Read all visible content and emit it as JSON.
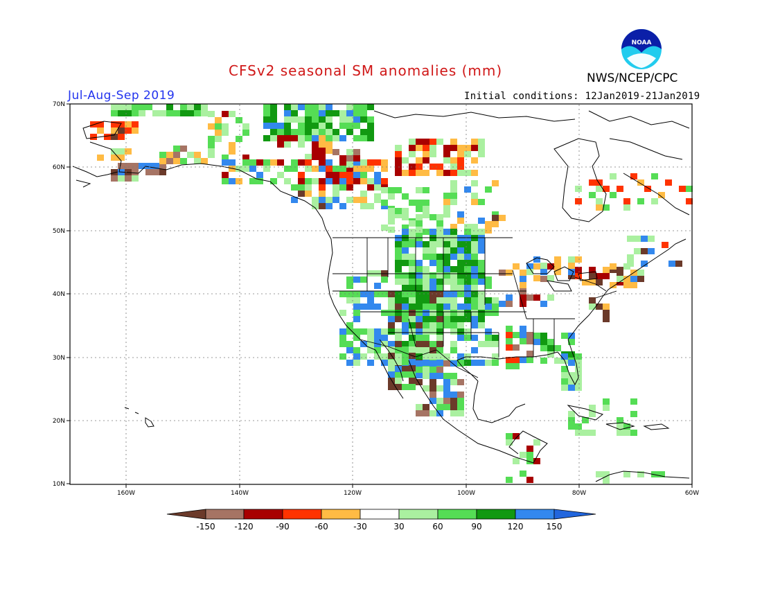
{
  "title": "CFSv2 seasonal SM anomalies (mm)",
  "period": "Jul-Aug-Sep 2019",
  "initial_conditions": "Initial conditions: 12Jan2019-21Jan2019",
  "agency": "NWS/NCEP/CPC",
  "logo_text": "NOAA",
  "map": {
    "lon_range": [
      -170,
      -60
    ],
    "lat_range": [
      10,
      70
    ],
    "lat_labels": [
      "70N",
      "60N",
      "50N",
      "40N",
      "30N",
      "20N",
      "10N"
    ],
    "lon_labels": [
      "160W",
      "140W",
      "120W",
      "100W",
      "80W",
      "60W"
    ],
    "gridlines": "dotted"
  },
  "colorbar": {
    "colors": [
      "#6b3a2a",
      "#a67464",
      "#a80000",
      "#ff3300",
      "#ffbb44",
      "#ffffff",
      "#aaf0a0",
      "#55dd55",
      "#119911",
      "#3388ee",
      "#2266dd"
    ],
    "labels": [
      "-150",
      "-120",
      "-90",
      "-60",
      "-30",
      "30",
      "60",
      "90",
      "120",
      "150"
    ]
  }
}
